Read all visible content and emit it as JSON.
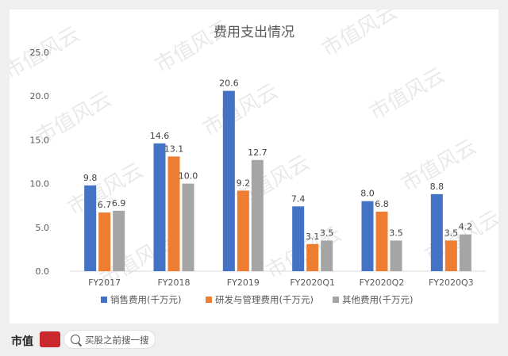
{
  "chart_data": {
    "type": "bar",
    "title": "费用支出情况",
    "categories": [
      "FY2017",
      "FY2018",
      "FY2019",
      "FY2020Q1",
      "FY2020Q2",
      "FY2020Q3"
    ],
    "series": [
      {
        "name": "销售费用(千万元)",
        "color": "#4472c4",
        "values": [
          9.8,
          14.6,
          20.6,
          7.4,
          8.0,
          8.8
        ]
      },
      {
        "name": "研发与管理费用(千万元)",
        "color": "#ed7d31",
        "values": [
          6.7,
          13.1,
          9.2,
          3.1,
          6.8,
          3.5
        ]
      },
      {
        "name": "其他费用(千万元)",
        "color": "#a5a5a5",
        "values": [
          6.9,
          10.0,
          12.7,
          3.5,
          3.5,
          4.2
        ]
      }
    ],
    "ylim": [
      0,
      25
    ],
    "yticks": [
      "0.0",
      "5.0",
      "10.0",
      "15.0",
      "20.0",
      "25.0"
    ],
    "xlabel": "",
    "ylabel": "",
    "grid": false,
    "legend_position": "bottom"
  },
  "watermark": {
    "text": "市值风云"
  },
  "footer": {
    "brand_text": "市值",
    "search_placeholder": "买股之前搜一搜"
  }
}
